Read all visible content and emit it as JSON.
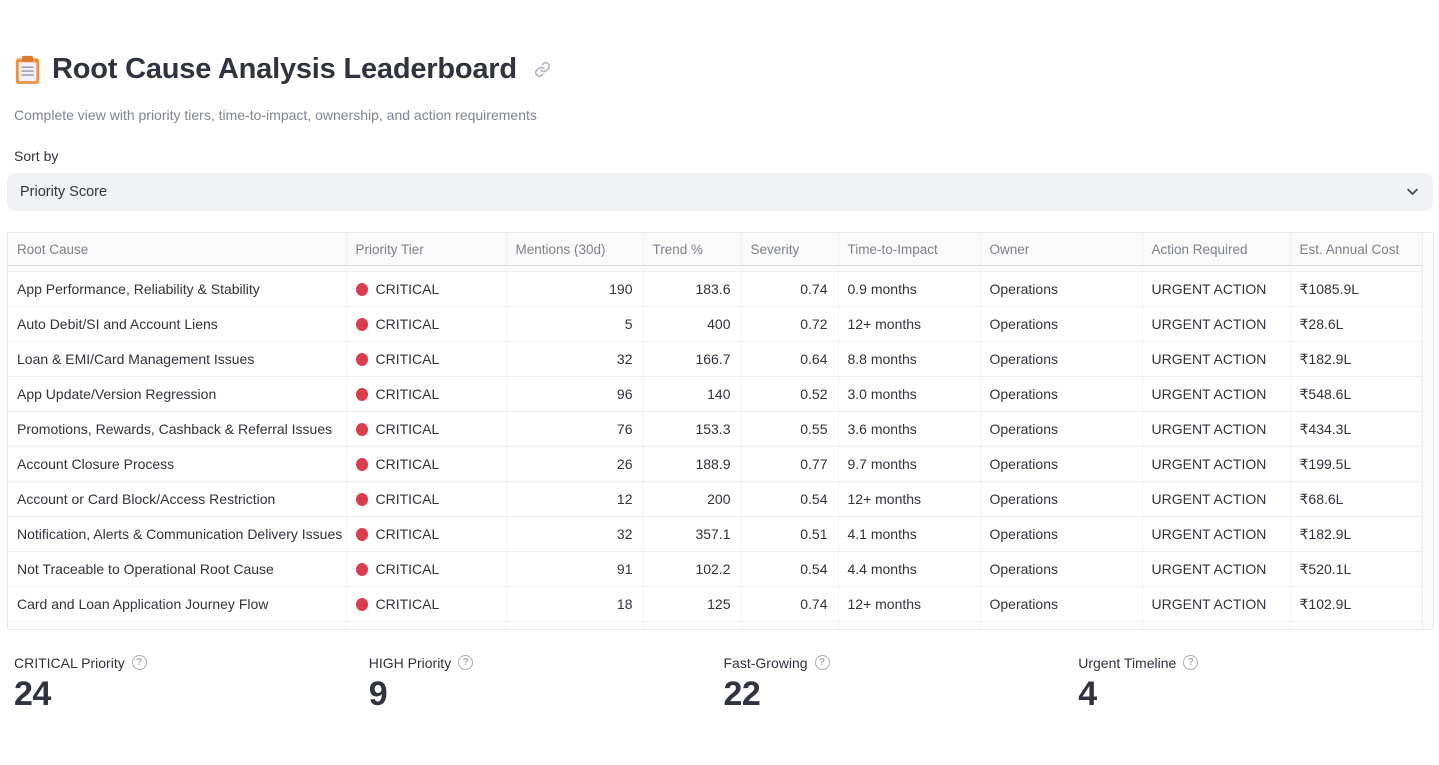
{
  "header": {
    "icon": "clipboard-icon",
    "title": "Root Cause Analysis Leaderboard",
    "anchor_icon": "link-icon",
    "subtitle": "Complete view with priority tiers, time-to-impact, ownership, and action requirements"
  },
  "sort": {
    "label": "Sort by",
    "value": "Priority Score",
    "chevron_icon": "chevron-down-icon"
  },
  "table": {
    "columns": [
      "Root Cause",
      "Priority Tier",
      "Mentions (30d)",
      "Trend %",
      "Severity",
      "Time-to-Impact",
      "Owner",
      "Action Required",
      "Est. Annual Cost"
    ],
    "numeric_columns": [
      "Mentions (30d)",
      "Trend %",
      "Severity"
    ],
    "tier_dot_color": "#dc3d4d",
    "rows": [
      {
        "root_cause": "App Performance, Reliability & Stability",
        "tier": "CRITICAL",
        "mentions": "190",
        "trend": "183.6",
        "severity": "0.74",
        "tti": "0.9 months",
        "owner": "Operations",
        "action": "URGENT ACTION",
        "cost": "₹1085.9L"
      },
      {
        "root_cause": "Auto Debit/SI and Account Liens",
        "tier": "CRITICAL",
        "mentions": "5",
        "trend": "400",
        "severity": "0.72",
        "tti": "12+ months",
        "owner": "Operations",
        "action": "URGENT ACTION",
        "cost": "₹28.6L"
      },
      {
        "root_cause": "Loan & EMI/Card Management Issues",
        "tier": "CRITICAL",
        "mentions": "32",
        "trend": "166.7",
        "severity": "0.64",
        "tti": "8.8 months",
        "owner": "Operations",
        "action": "URGENT ACTION",
        "cost": "₹182.9L"
      },
      {
        "root_cause": "App Update/Version Regression",
        "tier": "CRITICAL",
        "mentions": "96",
        "trend": "140",
        "severity": "0.52",
        "tti": "3.0 months",
        "owner": "Operations",
        "action": "URGENT ACTION",
        "cost": "₹548.6L"
      },
      {
        "root_cause": "Promotions, Rewards, Cashback & Referral Issues",
        "tier": "CRITICAL",
        "mentions": "76",
        "trend": "153.3",
        "severity": "0.55",
        "tti": "3.6 months",
        "owner": "Operations",
        "action": "URGENT ACTION",
        "cost": "₹434.3L"
      },
      {
        "root_cause": "Account Closure Process",
        "tier": "CRITICAL",
        "mentions": "26",
        "trend": "188.9",
        "severity": "0.77",
        "tti": "9.7 months",
        "owner": "Operations",
        "action": "URGENT ACTION",
        "cost": "₹199.5L"
      },
      {
        "root_cause": "Account or Card Block/Access Restriction",
        "tier": "CRITICAL",
        "mentions": "12",
        "trend": "200",
        "severity": "0.54",
        "tti": "12+ months",
        "owner": "Operations",
        "action": "URGENT ACTION",
        "cost": "₹68.6L"
      },
      {
        "root_cause": "Notification, Alerts & Communication Delivery Issues",
        "tier": "CRITICAL",
        "mentions": "32",
        "trend": "357.1",
        "severity": "0.51",
        "tti": "4.1 months",
        "owner": "Operations",
        "action": "URGENT ACTION",
        "cost": "₹182.9L"
      },
      {
        "root_cause": "Not Traceable to Operational Root Cause",
        "tier": "CRITICAL",
        "mentions": "91",
        "trend": "102.2",
        "severity": "0.54",
        "tti": "4.4 months",
        "owner": "Operations",
        "action": "URGENT ACTION",
        "cost": "₹520.1L"
      },
      {
        "root_cause": "Card and Loan Application Journey Flow",
        "tier": "CRITICAL",
        "mentions": "18",
        "trend": "125",
        "severity": "0.74",
        "tti": "12+ months",
        "owner": "Operations",
        "action": "URGENT ACTION",
        "cost": "₹102.9L"
      }
    ]
  },
  "metrics": [
    {
      "label": "CRITICAL Priority",
      "value": "24",
      "help_icon": "help-icon"
    },
    {
      "label": "HIGH Priority",
      "value": "9",
      "help_icon": "help-icon"
    },
    {
      "label": "Fast-Growing",
      "value": "22",
      "help_icon": "help-icon"
    },
    {
      "label": "Urgent Timeline",
      "value": "4",
      "help_icon": "help-icon"
    }
  ]
}
